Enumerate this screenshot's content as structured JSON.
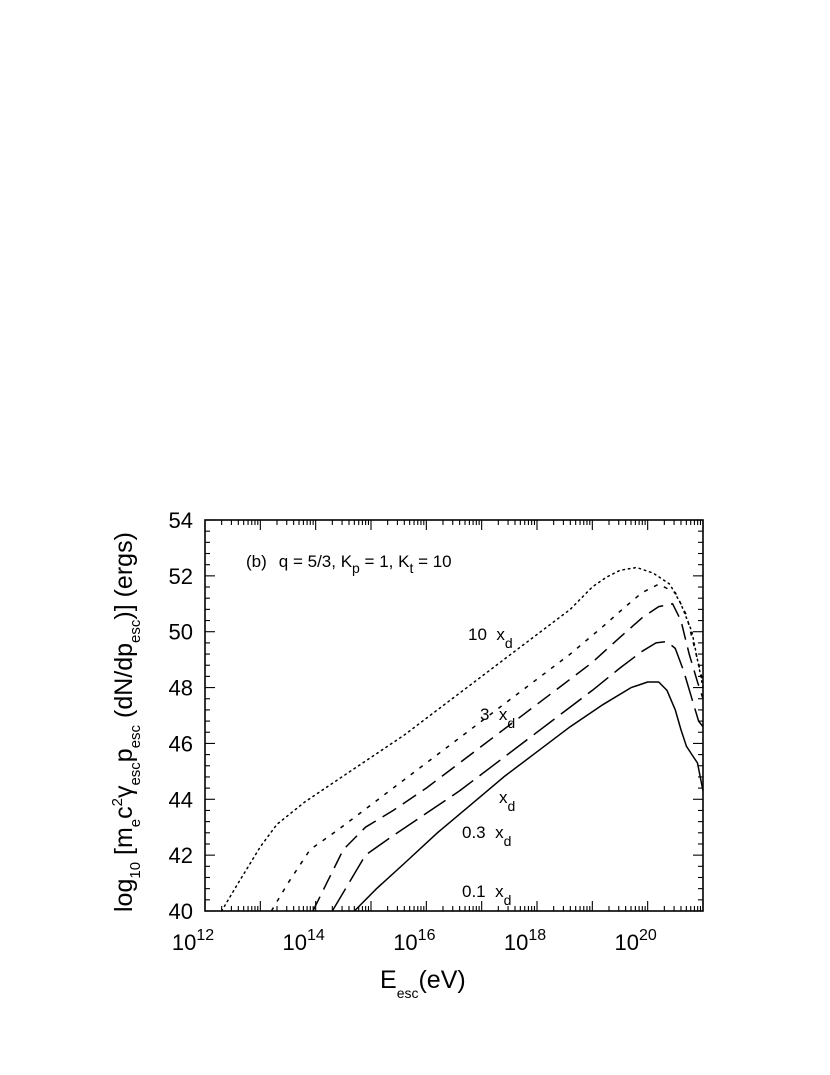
{
  "chart_data": {
    "type": "line",
    "title": "",
    "annotation": {
      "label": "(b)",
      "q_text": "q  =  5/3,  K",
      "kp_sub": "p",
      "kp_rest": "  =  1,  K",
      "kt_sub": "t",
      "kt_rest": "  =  10"
    },
    "xlabel": {
      "main": "E",
      "sub": "esc",
      "rest": "(eV)"
    },
    "ylabel": {
      "p1": "log",
      "p1_sub": "10",
      "p2": "  [m",
      "p2_sub": "e",
      "p3": "c",
      "p3_sup": "2",
      "p4": "γ",
      "p4_sub": "esc",
      "p5": "p",
      "p5_sub": "esc",
      "p6": "  (dN/dp",
      "p6_sub": "esc",
      "p7": ")]  (ergs)"
    },
    "x_scale": "log",
    "xlim": [
      1000000000000.0,
      1e+21
    ],
    "ylim": [
      40,
      54
    ],
    "x_ticks": [
      {
        "value": 12,
        "base": "10",
        "exp": "12"
      },
      {
        "value": 14,
        "base": "10",
        "exp": "14"
      },
      {
        "value": 16,
        "base": "10",
        "exp": "16"
      },
      {
        "value": 18,
        "base": "10",
        "exp": "18"
      },
      {
        "value": 20,
        "base": "10",
        "exp": "20"
      }
    ],
    "y_ticks": [
      "40",
      "42",
      "44",
      "46",
      "48",
      "50",
      "52",
      "54"
    ],
    "series": [
      {
        "label_num": "10",
        "label_x": "x",
        "label_sub": "d",
        "style": "dotted",
        "log10_x": [
          12.3,
          12.6,
          13.0,
          13.3,
          13.8,
          14.4,
          15.0,
          15.6,
          16.2,
          16.8,
          17.4,
          18.0,
          18.6,
          19.0,
          19.25,
          19.5,
          19.8,
          20.1,
          20.4,
          20.6,
          20.8,
          21.0
        ],
        "y": [
          40.0,
          41.0,
          42.3,
          43.1,
          43.9,
          44.7,
          45.5,
          46.3,
          47.2,
          48.1,
          49.0,
          49.9,
          50.8,
          51.6,
          51.95,
          52.2,
          52.3,
          52.1,
          51.7,
          51.0,
          50.0,
          48.0
        ]
      },
      {
        "label_num": "3",
        "label_x": "x",
        "label_sub": "d",
        "style": "short-dash",
        "log10_x": [
          13.2,
          13.5,
          13.9,
          14.4,
          15.0,
          15.6,
          16.2,
          16.8,
          17.4,
          18.0,
          18.6,
          19.2,
          19.6,
          19.9,
          20.2,
          20.5,
          20.7,
          20.85,
          21.0
        ],
        "y": [
          40.0,
          41.0,
          42.2,
          42.9,
          43.8,
          44.7,
          45.6,
          46.5,
          47.4,
          48.3,
          49.2,
          50.2,
          50.9,
          51.4,
          51.7,
          51.4,
          50.6,
          49.4,
          48.2
        ]
      },
      {
        "label_num": "",
        "label_x": "x",
        "label_sub": "d",
        "style": "long-dash",
        "log10_x": [
          13.95,
          14.2,
          14.5,
          14.9,
          15.4,
          16.0,
          16.6,
          17.2,
          17.8,
          18.4,
          19.0,
          19.5,
          19.9,
          20.2,
          20.45,
          20.6,
          20.75,
          20.9,
          21.0
        ],
        "y": [
          40.0,
          41.0,
          42.2,
          43.0,
          43.6,
          44.4,
          45.3,
          46.2,
          47.1,
          48.0,
          48.9,
          49.8,
          50.5,
          50.9,
          51.0,
          50.4,
          49.2,
          48.2,
          47.6
        ]
      },
      {
        "label_num": "0.3",
        "label_x": "x",
        "label_sub": "d",
        "style": "very-long-dash",
        "log10_x": [
          14.3,
          14.6,
          14.9,
          15.4,
          16.0,
          16.6,
          17.2,
          17.8,
          18.4,
          19.0,
          19.5,
          19.9,
          20.15,
          20.35,
          20.5,
          20.65,
          20.8,
          20.92,
          21.0
        ],
        "y": [
          40.0,
          41.0,
          42.0,
          42.7,
          43.5,
          44.3,
          45.2,
          46.1,
          47.0,
          47.9,
          48.7,
          49.3,
          49.6,
          49.65,
          49.4,
          48.6,
          47.6,
          46.8,
          46.6
        ]
      },
      {
        "label_num": "0.1",
        "label_x": "x",
        "label_sub": "d",
        "style": "solid",
        "log10_x": [
          14.7,
          15.1,
          15.6,
          16.2,
          16.8,
          17.4,
          18.0,
          18.6,
          19.2,
          19.7,
          20.0,
          20.2,
          20.35,
          20.5,
          20.6,
          20.7,
          20.8,
          20.9,
          21.0
        ],
        "y": [
          40.0,
          40.8,
          41.7,
          42.8,
          43.8,
          44.8,
          45.7,
          46.6,
          47.4,
          48.0,
          48.2,
          48.2,
          47.9,
          47.2,
          46.5,
          45.9,
          45.6,
          45.3,
          44.3
        ]
      }
    ]
  }
}
